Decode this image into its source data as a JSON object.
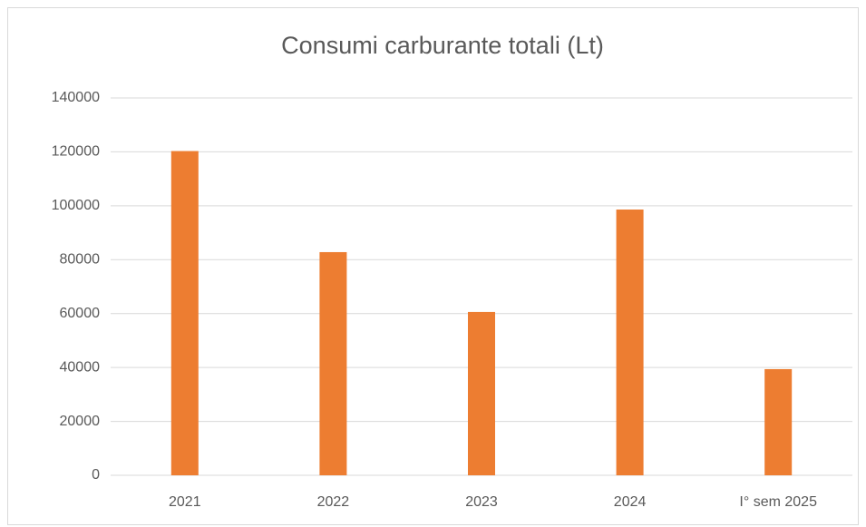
{
  "chart_data": {
    "type": "bar",
    "title": "Consumi carburante totali (Lt)",
    "categories": [
      "2021",
      "2022",
      "2023",
      "2024",
      "I° sem 2025"
    ],
    "values": [
      120300,
      82800,
      60600,
      98600,
      39400
    ],
    "color": "#ed7d31",
    "ylim": [
      0,
      140000
    ],
    "yticks": [
      0,
      20000,
      40000,
      60000,
      80000,
      100000,
      120000,
      140000
    ],
    "grid": true
  }
}
